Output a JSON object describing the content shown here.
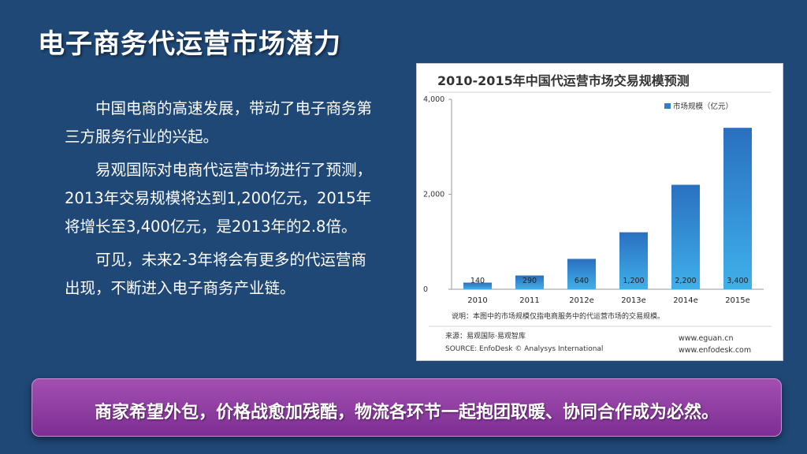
{
  "title": "电子商务代运营市场潜力",
  "paragraphs": [
    "中国电商的高速发展，带动了电子商务第三方服务行业的兴起。",
    "易观国际对电商代运营市场进行了预测，2013年交易规模将达到1,200亿元，2015年将增长至3,400亿元，是2013年的2.8倍。",
    "可见，未来2-3年将会有更多的代运营商出现，不断进入电子商务产业链。"
  ],
  "banner": "商家希望外包，价格战愈加残酷，物流各环节一起抱团取暖、协同合作成为必然。",
  "chart_data": {
    "type": "bar",
    "title": "2010-2015年中国代运营市场交易规模预测",
    "categories": [
      "2010",
      "2011",
      "2012e",
      "2013e",
      "2014e",
      "2015e"
    ],
    "series": [
      {
        "name": "市场规模（亿元）",
        "values": [
          140,
          290,
          640,
          1200,
          2200,
          3400
        ]
      }
    ],
    "value_labels": [
      "140",
      "290",
      "640",
      "1,200",
      "2,200",
      "3,400"
    ],
    "yticks": [
      0,
      2000,
      4000
    ],
    "ytick_labels": [
      "0",
      "2,000",
      "4,000"
    ],
    "ylim": [
      0,
      4000
    ],
    "legend_position": "top-right",
    "grid": false,
    "note": "说明：本图中的市场规模仅指电商服务中的代运营市场的交易规模。",
    "source_cn": "来源：易观国际·易观智库",
    "source_en": "SOURCE: EnfoDesk © Analysys International",
    "website_1": "www.eguan.cn",
    "website_2": "www.enfodesk.com",
    "colors": {
      "bar_top": "#2a70c0",
      "bar_bottom": "#3fb0ea",
      "legend": "#2f7fcc"
    }
  }
}
